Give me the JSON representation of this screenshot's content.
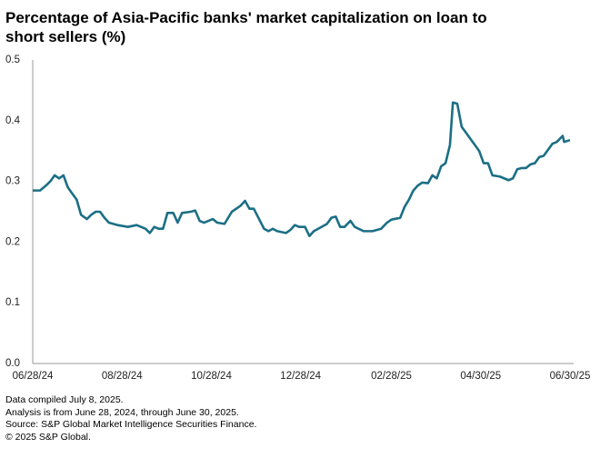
{
  "chart_data": {
    "type": "line",
    "title": "Percentage of Asia-Pacific banks' market capitalization on loan to short sellers (%)",
    "color": "#1b6f85",
    "x": [
      "06/28/24",
      "07/03/24",
      "07/07/24",
      "07/10/24",
      "07/13/24",
      "07/16/24",
      "07/19/24",
      "07/22/24",
      "07/25/24",
      "07/28/24",
      "07/31/24",
      "08/04/24",
      "08/07/24",
      "08/10/24",
      "08/13/24",
      "08/16/24",
      "08/19/24",
      "08/25/24",
      "09/01/24",
      "09/07/24",
      "09/13/24",
      "09/16/24",
      "09/19/24",
      "09/22/24",
      "09/25/24",
      "09/28/24",
      "10/02/24",
      "10/05/24",
      "10/08/24",
      "10/14/24",
      "10/17/24",
      "10/20/24",
      "10/23/24",
      "10/26/24",
      "10/29/24",
      "11/01/24",
      "11/06/24",
      "11/11/24",
      "11/14/24",
      "11/17/24",
      "11/20/24",
      "11/23/24",
      "11/26/24",
      "12/03/24",
      "12/06/24",
      "12/09/24",
      "12/12/24",
      "12/18/24",
      "12/21/24",
      "12/24/24",
      "12/27/24",
      "12/31/24",
      "01/03/25",
      "01/06/25",
      "01/09/25",
      "01/15/25",
      "01/18/25",
      "01/21/25",
      "01/24/25",
      "01/27/25",
      "01/31/25",
      "02/03/25",
      "02/09/25",
      "02/15/25",
      "02/21/25",
      "02/25/25",
      "02/28/25",
      "03/06/25",
      "03/09/25",
      "03/12/25",
      "03/15/25",
      "03/18/25",
      "03/21/25",
      "03/25/25",
      "03/28/25",
      "03/31/25",
      "04/03/25",
      "04/06/25",
      "04/09/25",
      "04/11/25",
      "04/14/25",
      "04/17/25",
      "04/20/25",
      "04/23/25",
      "04/26/25",
      "04/29/25",
      "05/02/25",
      "05/05/25",
      "05/08/25",
      "05/13/25",
      "05/16/25",
      "05/19/25",
      "05/22/25",
      "05/25/25",
      "05/28/25",
      "05/31/25",
      "06/03/25",
      "06/06/25",
      "06/09/25",
      "06/12/25",
      "06/15/25",
      "06/18/25",
      "06/21/25",
      "06/25/25",
      "06/26/25",
      "06/30/25"
    ],
    "values": [
      0.285,
      0.285,
      0.293,
      0.3,
      0.31,
      0.305,
      0.31,
      0.29,
      0.28,
      0.27,
      0.245,
      0.238,
      0.245,
      0.25,
      0.25,
      0.24,
      0.232,
      0.228,
      0.225,
      0.228,
      0.222,
      0.215,
      0.225,
      0.222,
      0.222,
      0.248,
      0.248,
      0.232,
      0.248,
      0.25,
      0.252,
      0.235,
      0.232,
      0.235,
      0.238,
      0.232,
      0.23,
      0.25,
      0.255,
      0.26,
      0.268,
      0.255,
      0.255,
      0.222,
      0.218,
      0.222,
      0.218,
      0.215,
      0.22,
      0.228,
      0.225,
      0.225,
      0.21,
      0.218,
      0.222,
      0.23,
      0.24,
      0.242,
      0.225,
      0.225,
      0.235,
      0.225,
      0.218,
      0.218,
      0.222,
      0.232,
      0.237,
      0.24,
      0.258,
      0.27,
      0.285,
      0.293,
      0.298,
      0.297,
      0.31,
      0.305,
      0.325,
      0.33,
      0.36,
      0.43,
      0.428,
      0.39,
      0.38,
      0.37,
      0.36,
      0.35,
      0.33,
      0.33,
      0.31,
      0.308,
      0.305,
      0.302,
      0.305,
      0.32,
      0.322,
      0.322,
      0.328,
      0.33,
      0.34,
      0.342,
      0.352,
      0.362,
      0.365,
      0.375,
      0.365,
      0.368
    ],
    "xlim": [
      "06/28/24",
      "06/30/25"
    ],
    "xticks": [
      "06/28/24",
      "08/28/24",
      "10/28/24",
      "12/28/24",
      "02/28/25",
      "04/30/25",
      "06/30/25"
    ],
    "ylim": [
      0,
      0.5
    ],
    "yticks": [
      {
        "value": 0,
        "label": "0.0"
      },
      0.1,
      0.2,
      0.3,
      0.4,
      0.5
    ],
    "grid": false,
    "footnotes": [
      "Data compiled July 8, 2025.",
      "Analysis is from June 28, 2024, through June 30, 2025.",
      "Source: S&P Global Market Intelligence Securities Finance.",
      "© 2025 S&P Global."
    ]
  }
}
